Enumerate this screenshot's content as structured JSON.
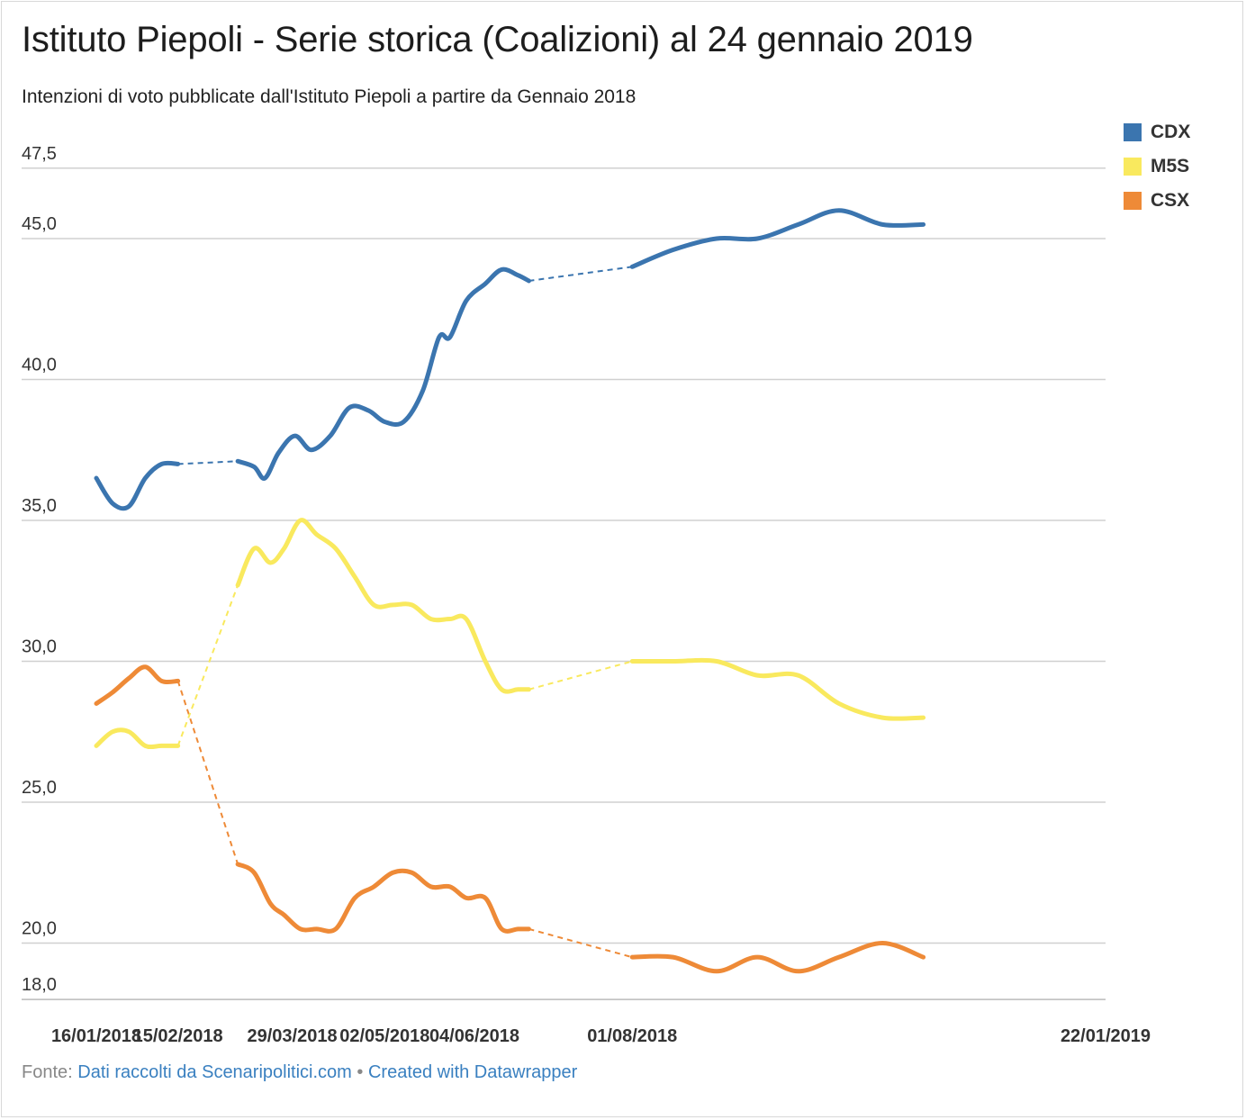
{
  "title": "Istituto Piepoli - Serie storica (Coalizioni) al 24 gennaio 2019",
  "subtitle": "Intenzioni di voto pubblicate dall'Istituto Piepoli a partire da Gennaio 2018",
  "legend": [
    {
      "label": "CDX",
      "color": "#3b75af"
    },
    {
      "label": "M5S",
      "color": "#f9e95e"
    },
    {
      "label": "CSX",
      "color": "#ee8a37"
    }
  ],
  "footer": {
    "prefix": "Fonte:",
    "source_link": "Dati raccolti da Scenaripolitici.com",
    "separator": "•",
    "credit_link": "Created with Datawrapper"
  },
  "chart_data": {
    "type": "line",
    "y_ticks": [
      "47,5",
      "45,0",
      "40,0",
      "35,0",
      "30,0",
      "25,0",
      "20,0",
      "18,0"
    ],
    "y_tick_values": [
      47.5,
      45,
      40,
      35,
      30,
      25,
      20,
      18
    ],
    "ylim": [
      18,
      47.5
    ],
    "grid": true,
    "legend_position": "top-right",
    "x_ticks": [
      "16/01/2018",
      "15/02/2018",
      "29/03/2018",
      "02/05/2018",
      "04/06/2018",
      "01/08/2018",
      "22/01/2019"
    ],
    "x_tick_dates": [
      "2018-01-16",
      "2018-02-15",
      "2018-03-29",
      "2018-05-02",
      "2018-06-04",
      "2018-08-01",
      "2019-01-22"
    ],
    "xlim": [
      "2018-01-16",
      "2019-01-22"
    ],
    "gap": [
      "2018-02-15",
      "2018-03-09"
    ],
    "gap2": [
      "2018-07-20",
      "2018-08-01"
    ],
    "series": [
      {
        "name": "CDX",
        "color": "#3b75af",
        "points": [
          [
            "2018-01-16",
            36.5
          ],
          [
            "2018-01-22",
            35.6
          ],
          [
            "2018-01-28",
            35.5
          ],
          [
            "2018-02-03",
            36.5
          ],
          [
            "2018-02-09",
            37.0
          ],
          [
            "2018-02-15",
            37.0
          ],
          [
            "2018-03-09",
            37.1
          ],
          [
            "2018-03-15",
            36.9
          ],
          [
            "2018-03-19",
            36.5
          ],
          [
            "2018-03-24",
            37.4
          ],
          [
            "2018-03-30",
            38.0
          ],
          [
            "2018-04-05",
            37.5
          ],
          [
            "2018-04-12",
            38.0
          ],
          [
            "2018-04-19",
            39.0
          ],
          [
            "2018-04-26",
            38.9
          ],
          [
            "2018-05-02",
            38.5
          ],
          [
            "2018-05-09",
            38.5
          ],
          [
            "2018-05-16",
            39.6
          ],
          [
            "2018-05-22",
            41.5
          ],
          [
            "2018-05-26",
            41.5
          ],
          [
            "2018-06-01",
            42.8
          ],
          [
            "2018-06-08",
            43.4
          ],
          [
            "2018-06-14",
            43.9
          ],
          [
            "2018-06-20",
            43.7
          ],
          [
            "2018-06-24",
            43.5
          ],
          [
            "2018-08-01",
            44.0
          ],
          [
            "2018-08-16",
            44.6
          ],
          [
            "2018-09-01",
            45.0
          ],
          [
            "2018-09-16",
            45.0
          ],
          [
            "2018-10-01",
            45.5
          ],
          [
            "2018-10-16",
            46.0
          ],
          [
            "2018-11-01",
            45.5
          ],
          [
            "2018-11-16",
            45.5
          ]
        ]
      },
      {
        "name": "M5S",
        "color": "#f9e95e",
        "points": [
          [
            "2018-01-16",
            27.0
          ],
          [
            "2018-01-22",
            27.5
          ],
          [
            "2018-01-28",
            27.5
          ],
          [
            "2018-02-03",
            27.0
          ],
          [
            "2018-02-09",
            27.0
          ],
          [
            "2018-02-15",
            27.0
          ],
          [
            "2018-03-09",
            32.7
          ],
          [
            "2018-03-15",
            34.0
          ],
          [
            "2018-03-21",
            33.5
          ],
          [
            "2018-03-26",
            34.0
          ],
          [
            "2018-04-01",
            35.0
          ],
          [
            "2018-04-07",
            34.5
          ],
          [
            "2018-04-14",
            34.0
          ],
          [
            "2018-04-21",
            33.0
          ],
          [
            "2018-04-28",
            32.0
          ],
          [
            "2018-05-05",
            32.0
          ],
          [
            "2018-05-12",
            32.0
          ],
          [
            "2018-05-19",
            31.5
          ],
          [
            "2018-05-26",
            31.5
          ],
          [
            "2018-06-01",
            31.5
          ],
          [
            "2018-06-08",
            30.0
          ],
          [
            "2018-06-14",
            29.0
          ],
          [
            "2018-06-20",
            29.0
          ],
          [
            "2018-06-24",
            29.0
          ],
          [
            "2018-08-01",
            30.0
          ],
          [
            "2018-08-16",
            30.0
          ],
          [
            "2018-09-01",
            30.0
          ],
          [
            "2018-09-16",
            29.5
          ],
          [
            "2018-10-01",
            29.5
          ],
          [
            "2018-10-16",
            28.5
          ],
          [
            "2018-11-01",
            28.0
          ],
          [
            "2018-11-16",
            28.0
          ]
        ]
      },
      {
        "name": "CSX",
        "color": "#ee8a37",
        "points": [
          [
            "2018-01-16",
            28.5
          ],
          [
            "2018-01-22",
            28.9
          ],
          [
            "2018-01-28",
            29.4
          ],
          [
            "2018-02-03",
            29.8
          ],
          [
            "2018-02-09",
            29.3
          ],
          [
            "2018-02-15",
            29.3
          ],
          [
            "2018-03-09",
            22.8
          ],
          [
            "2018-03-15",
            22.5
          ],
          [
            "2018-03-21",
            21.4
          ],
          [
            "2018-03-26",
            21.0
          ],
          [
            "2018-04-01",
            20.5
          ],
          [
            "2018-04-07",
            20.5
          ],
          [
            "2018-04-14",
            20.5
          ],
          [
            "2018-04-21",
            21.6
          ],
          [
            "2018-04-28",
            22.0
          ],
          [
            "2018-05-05",
            22.5
          ],
          [
            "2018-05-12",
            22.5
          ],
          [
            "2018-05-19",
            22.0
          ],
          [
            "2018-05-26",
            22.0
          ],
          [
            "2018-06-01",
            21.6
          ],
          [
            "2018-06-08",
            21.6
          ],
          [
            "2018-06-14",
            20.5
          ],
          [
            "2018-06-20",
            20.5
          ],
          [
            "2018-06-24",
            20.5
          ],
          [
            "2018-08-01",
            19.5
          ],
          [
            "2018-08-16",
            19.5
          ],
          [
            "2018-09-01",
            19.0
          ],
          [
            "2018-09-16",
            19.5
          ],
          [
            "2018-10-01",
            19.0
          ],
          [
            "2018-10-16",
            19.5
          ],
          [
            "2018-11-01",
            20.0
          ],
          [
            "2018-11-16",
            19.5
          ]
        ]
      }
    ]
  }
}
